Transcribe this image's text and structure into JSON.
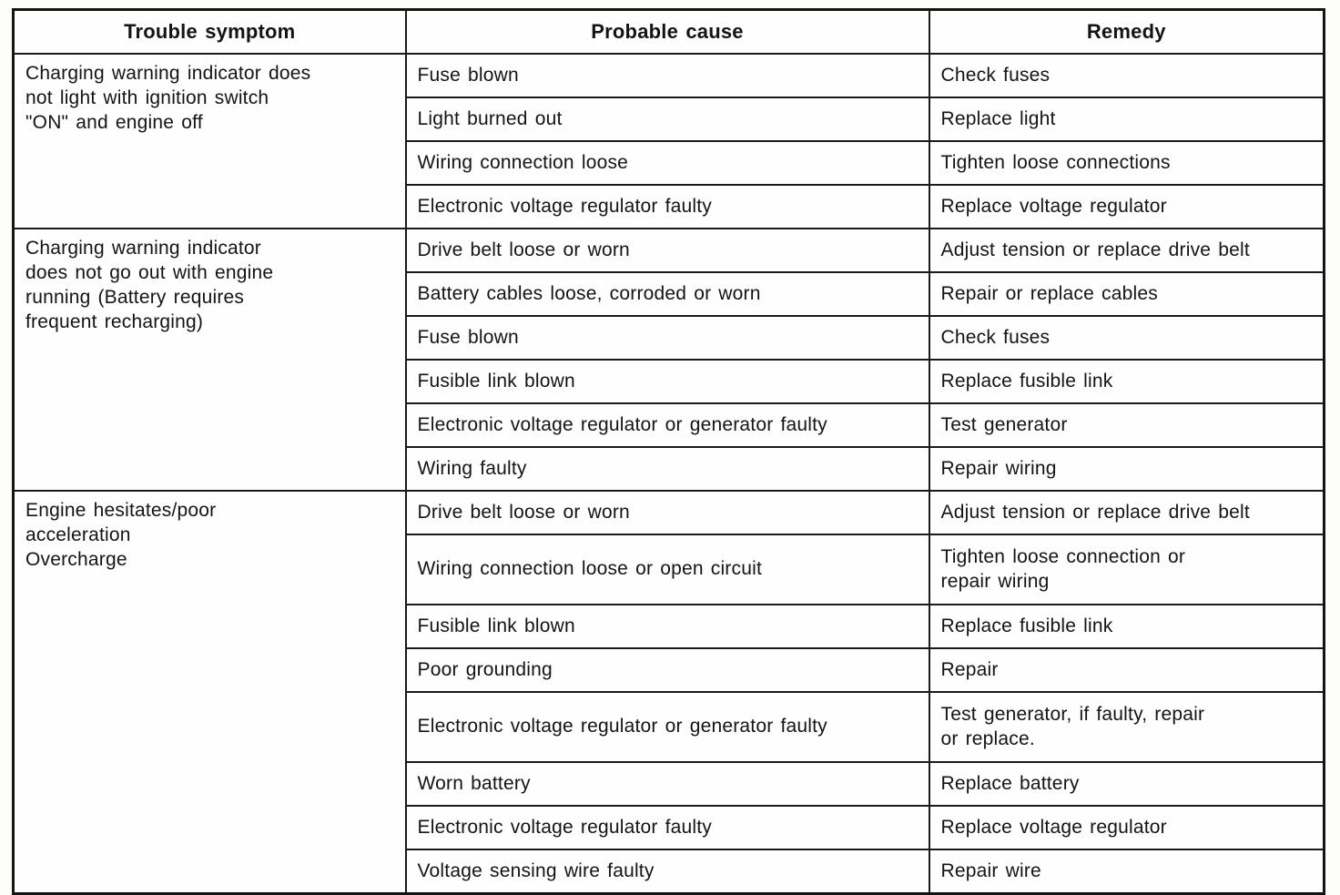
{
  "table": {
    "headers": {
      "symptom": "Trouble symptom",
      "cause": "Probable cause",
      "remedy": "Remedy"
    },
    "sections": [
      {
        "symptom": "Charging warning indicator does\nnot light with ignition switch\n\"ON\" and engine off",
        "rows": [
          {
            "cause": "Fuse blown",
            "remedy": "Check fuses"
          },
          {
            "cause": "Light burned out",
            "remedy": "Replace light"
          },
          {
            "cause": "Wiring connection loose",
            "remedy": "Tighten loose connections"
          },
          {
            "cause": "Electronic voltage regulator faulty",
            "remedy": "Replace voltage regulator"
          }
        ]
      },
      {
        "symptom": "Charging warning indicator\ndoes not go out with engine\nrunning (Battery requires\nfrequent recharging)",
        "rows": [
          {
            "cause": "Drive belt loose or worn",
            "remedy": "Adjust tension or replace drive belt"
          },
          {
            "cause": "Battery cables loose, corroded or worn",
            "remedy": "Repair or replace cables"
          },
          {
            "cause": "Fuse blown",
            "remedy": "Check fuses"
          },
          {
            "cause": "Fusible link blown",
            "remedy": "Replace fusible link"
          },
          {
            "cause": "Electronic voltage regulator or generator faulty",
            "remedy": "Test generator"
          },
          {
            "cause": "Wiring faulty",
            "remedy": "Repair wiring"
          }
        ]
      },
      {
        "symptom": "Engine hesitates/poor\nacceleration\nOvercharge",
        "rows": [
          {
            "cause": "Drive belt loose or worn",
            "remedy": "Adjust tension or replace drive belt"
          },
          {
            "cause": "Wiring connection loose or open circuit",
            "remedy": "Tighten loose connection or\nrepair wiring"
          },
          {
            "cause": "Fusible link blown",
            "remedy": "Replace fusible link"
          },
          {
            "cause": "Poor grounding",
            "remedy": "Repair"
          },
          {
            "cause": "Electronic voltage regulator or generator faulty",
            "remedy": "Test generator, if faulty, repair\nor replace."
          },
          {
            "cause": "Worn battery",
            "remedy": "Replace battery"
          },
          {
            "cause": "Electronic voltage regulator faulty",
            "remedy": "Replace voltage regulator"
          },
          {
            "cause": "Voltage sensing wire faulty",
            "remedy": "Repair wire"
          }
        ]
      }
    ]
  }
}
